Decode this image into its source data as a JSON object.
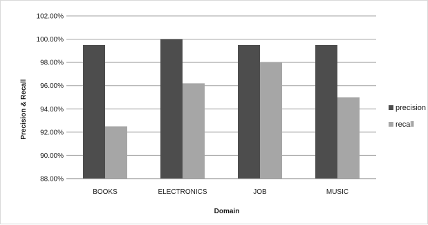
{
  "chart_data": {
    "type": "bar",
    "categories": [
      "BOOKS",
      "ELECTRONICS",
      "JOB",
      "MUSIC"
    ],
    "series": [
      {
        "name": "precision",
        "values": [
          0.995,
          1.0,
          0.995,
          0.995
        ],
        "color": "#4d4d4d"
      },
      {
        "name": "recall",
        "values": [
          0.925,
          0.962,
          0.98,
          0.95
        ],
        "color": "#a6a6a6"
      }
    ],
    "xlabel": "Domain",
    "ylabel": "Precision & Recall",
    "ylim": [
      0.88,
      1.02
    ],
    "yticks": [
      "88.00%",
      "90.00%",
      "92.00%",
      "94.00%",
      "96.00%",
      "98.00%",
      "100.00%",
      "102.00%"
    ],
    "grid": true,
    "legend_position": "right"
  }
}
